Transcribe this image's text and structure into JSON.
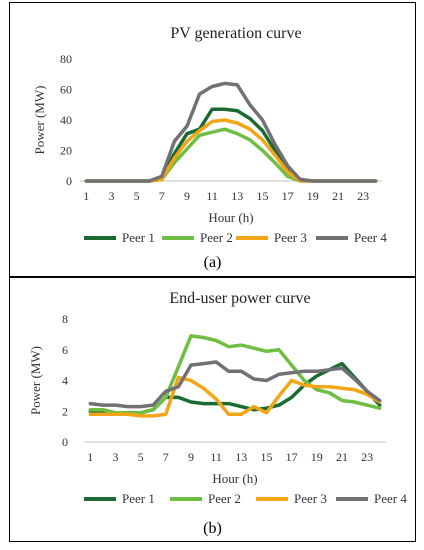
{
  "panels": [
    {
      "caption": "(a)",
      "chart_data": {
        "type": "line",
        "title": "PV generation curve",
        "xlabel": "Hour (h)",
        "ylabel": "Power (MW)",
        "ylim": [
          0,
          80
        ],
        "yticks": [
          0,
          20,
          40,
          60,
          80
        ],
        "x": [
          1,
          2,
          3,
          4,
          5,
          6,
          7,
          8,
          9,
          10,
          11,
          12,
          13,
          14,
          15,
          16,
          17,
          18,
          19,
          20,
          21,
          22,
          23,
          24
        ],
        "xticks": [
          1,
          3,
          5,
          7,
          9,
          11,
          13,
          15,
          17,
          19,
          21,
          23
        ],
        "grid": false,
        "legend": "bottom",
        "series": [
          {
            "name": "Peer 1",
            "color": "#1a6b32",
            "values": [
              0,
              0,
              0,
              0,
              0,
              0,
              2,
              18,
              31,
              34,
              47,
              47,
              46,
              41,
              33,
              20,
              8,
              1,
              0,
              0,
              0,
              0,
              0,
              0
            ]
          },
          {
            "name": "Peer 2",
            "color": "#6fbe44",
            "values": [
              0,
              0,
              0,
              0,
              0,
              0,
              1,
              12,
              21,
              30,
              32,
              34,
              31,
              27,
              20,
              12,
              3,
              0,
              0,
              0,
              0,
              0,
              0,
              0
            ]
          },
          {
            "name": "Peer 3",
            "color": "#f2a516",
            "values": [
              0,
              0,
              0,
              0,
              0,
              0,
              1,
              15,
              26,
              33,
              39,
              40,
              38,
              34,
              27,
              17,
              6,
              0,
              0,
              0,
              0,
              0,
              0,
              0
            ]
          },
          {
            "name": "Peer 4",
            "color": "#717175",
            "values": [
              0,
              0,
              0,
              0,
              0,
              0,
              3,
              26,
              36,
              57,
              62,
              64,
              63,
              50,
              40,
              24,
              10,
              1,
              0,
              0,
              0,
              0,
              0,
              0
            ]
          }
        ]
      }
    },
    {
      "caption": "(b)",
      "chart_data": {
        "type": "line",
        "title": "End-user power curve",
        "xlabel": "Hour (h)",
        "ylabel": "Power (MW)",
        "ylim": [
          0,
          8
        ],
        "yticks": [
          0,
          2,
          4,
          6,
          8
        ],
        "x": [
          1,
          2,
          3,
          4,
          5,
          6,
          7,
          8,
          9,
          10,
          11,
          12,
          13,
          14,
          15,
          16,
          17,
          18,
          19,
          20,
          21,
          22,
          23,
          24
        ],
        "xticks": [
          1,
          3,
          5,
          7,
          9,
          11,
          13,
          15,
          17,
          19,
          21,
          23,
          "",
          ""
        ],
        "grid": false,
        "legend": "bottom",
        "series": [
          {
            "name": "Peer 1",
            "color": "#1a6b32",
            "values": [
              2.0,
              2.0,
              1.9,
              1.9,
              1.9,
              2.1,
              2.9,
              2.9,
              2.6,
              2.5,
              2.5,
              2.5,
              2.3,
              2.1,
              2.2,
              2.4,
              2.9,
              3.7,
              4.3,
              4.7,
              5.1,
              4.2,
              3.3,
              2.4
            ]
          },
          {
            "name": "Peer 2",
            "color": "#6fbe44",
            "values": [
              2.1,
              2.1,
              1.9,
              1.9,
              1.9,
              2.1,
              2.9,
              4.9,
              6.9,
              6.8,
              6.6,
              6.2,
              6.3,
              6.1,
              5.9,
              6.0,
              5.0,
              4.0,
              3.4,
              3.2,
              2.7,
              2.6,
              2.4,
              2.2
            ]
          },
          {
            "name": "Peer 3",
            "color": "#f2a516",
            "values": [
              1.8,
              1.8,
              1.8,
              1.8,
              1.7,
              1.7,
              1.8,
              4.2,
              4.0,
              3.5,
              2.8,
              1.8,
              1.8,
              2.3,
              1.9,
              3.0,
              4.0,
              3.7,
              3.6,
              3.6,
              3.5,
              3.4,
              3.1,
              2.6
            ]
          },
          {
            "name": "Peer 4",
            "color": "#717175",
            "values": [
              2.5,
              2.4,
              2.4,
              2.3,
              2.3,
              2.4,
              3.3,
              3.6,
              5.0,
              5.1,
              5.2,
              4.6,
              4.6,
              4.1,
              4.0,
              4.4,
              4.5,
              4.6,
              4.6,
              4.7,
              4.8,
              4.1,
              3.3,
              2.7
            ]
          }
        ]
      }
    }
  ]
}
